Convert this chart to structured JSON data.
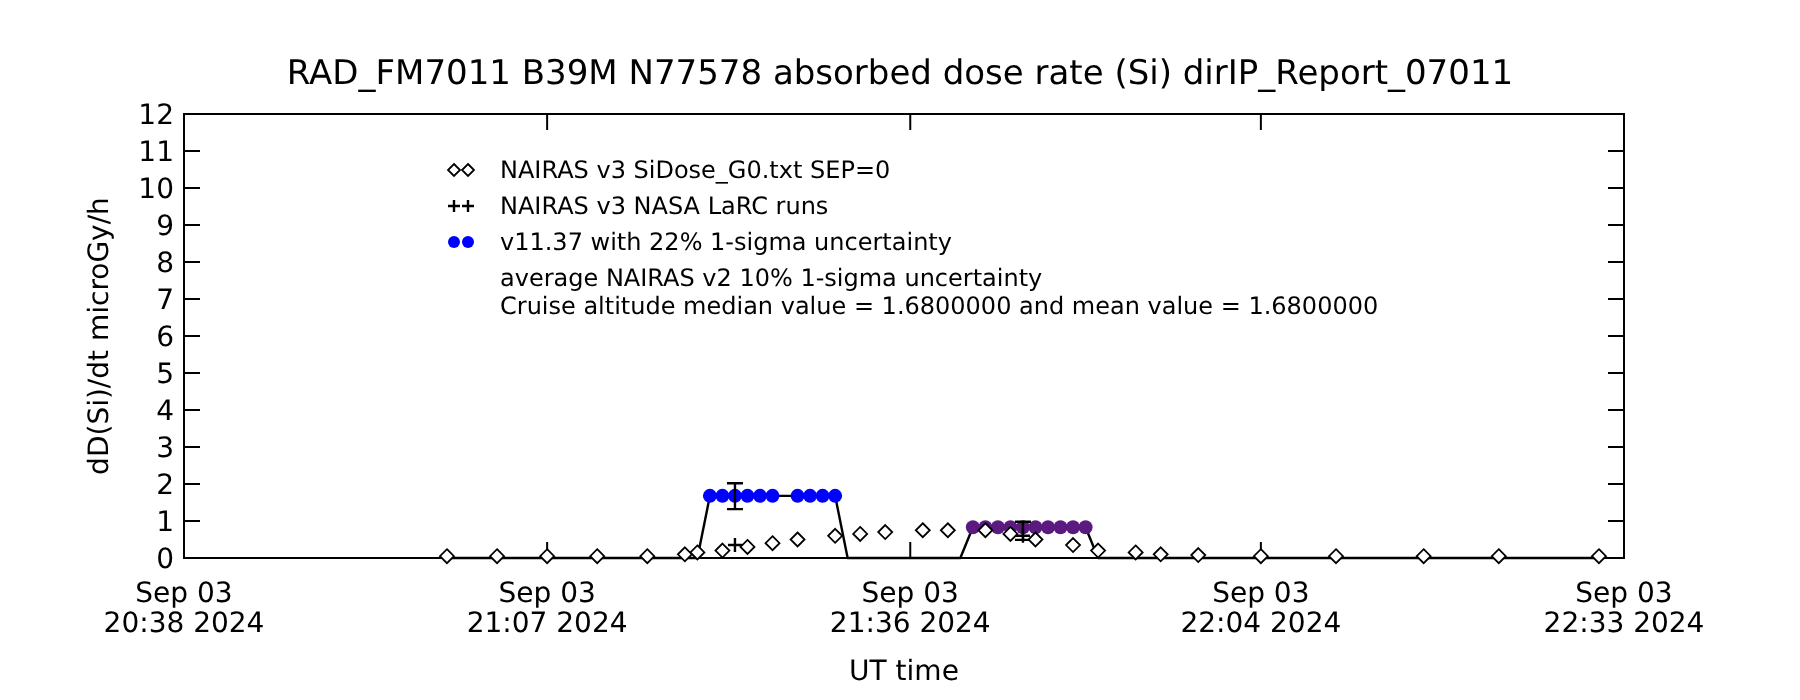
{
  "chart_data": {
    "type": "line",
    "title": "RAD_FM7011  B39M N77578 absorbed dose rate (Si) dirIP_Report_07011",
    "xlabel": "UT time",
    "ylabel": "dD(Si)/dt microGy/h",
    "xlim": [
      "2024-09-03T20:38",
      "2024-09-03T22:33"
    ],
    "xticks": [
      {
        "value": "2024-09-03T20:38",
        "label": "Sep 03\n20:38 2024"
      },
      {
        "value": "2024-09-03T21:07",
        "label": "Sep 03\n21:07 2024"
      },
      {
        "value": "2024-09-03T21:36",
        "label": "Sep 03\n21:36 2024"
      },
      {
        "value": "2024-09-03T22:04",
        "label": "Sep 03\n22:04 2024"
      },
      {
        "value": "2024-09-03T22:33",
        "label": "Sep 03\n22:33 2024"
      }
    ],
    "ylim": [
      0,
      12
    ],
    "yticks": [
      0,
      1,
      2,
      3,
      4,
      5,
      6,
      7,
      8,
      9,
      10,
      11,
      12
    ],
    "legend": "top",
    "annotations": [
      "average NAIRAS v2 10% 1-sigma uncertainty",
      "Cruise altitude median value = 1.6800000 and mean value = 1.6800000"
    ],
    "series": [
      {
        "name": "NAIRAS v3 SiDose_G0.txt SEP=0",
        "type": "scatter",
        "marker": "diamond",
        "color": "#000000",
        "x": [
          "2024-09-03T20:59",
          "2024-09-03T21:03",
          "2024-09-03T21:07",
          "2024-09-03T21:11",
          "2024-09-03T21:15",
          "2024-09-03T21:18",
          "2024-09-03T21:19",
          "2024-09-03T21:21",
          "2024-09-03T21:23",
          "2024-09-03T21:25",
          "2024-09-03T21:27",
          "2024-09-03T21:30",
          "2024-09-03T21:32",
          "2024-09-03T21:34",
          "2024-09-03T21:37",
          "2024-09-03T21:39",
          "2024-09-03T21:42",
          "2024-09-03T21:44",
          "2024-09-03T21:46",
          "2024-09-03T21:49",
          "2024-09-03T21:51",
          "2024-09-03T21:54",
          "2024-09-03T21:56",
          "2024-09-03T21:59",
          "2024-09-03T22:04",
          "2024-09-03T22:10",
          "2024-09-03T22:17",
          "2024-09-03T22:23",
          "2024-09-03T22:31"
        ],
        "values": [
          0.05,
          0.05,
          0.05,
          0.05,
          0.05,
          0.1,
          0.15,
          0.2,
          0.3,
          0.4,
          0.5,
          0.6,
          0.65,
          0.7,
          0.75,
          0.75,
          0.75,
          0.65,
          0.5,
          0.35,
          0.2,
          0.15,
          0.1,
          0.08,
          0.05,
          0.05,
          0.05,
          0.05,
          0.05
        ]
      },
      {
        "name": "NAIRAS v3 NASA LaRC runs",
        "type": "scatter",
        "marker": "cross",
        "color": "#000000",
        "x": [
          "2024-09-03T21:22",
          "2024-09-03T21:45"
        ],
        "values": [
          0.35,
          0.6
        ]
      },
      {
        "name": "v11.37 with 22% 1-sigma uncertainty",
        "type": "scatter",
        "marker": "circle",
        "color": "#0000ff",
        "x": [
          "2024-09-03T21:20",
          "2024-09-03T21:21",
          "2024-09-03T21:22",
          "2024-09-03T21:23",
          "2024-09-03T21:24",
          "2024-09-03T21:25",
          "2024-09-03T21:27",
          "2024-09-03T21:28",
          "2024-09-03T21:29",
          "2024-09-03T21:30"
        ],
        "values": [
          1.68,
          1.68,
          1.68,
          1.68,
          1.68,
          1.68,
          1.68,
          1.68,
          1.68,
          1.68
        ],
        "errors": [
          null,
          null,
          [
            1.32,
            2.02
          ],
          null,
          null,
          null,
          null,
          null,
          null,
          null
        ]
      },
      {
        "type": "scatter",
        "marker": "circle",
        "color": "#5a1a80",
        "x": [
          "2024-09-03T21:41",
          "2024-09-03T21:42",
          "2024-09-03T21:43",
          "2024-09-03T21:44",
          "2024-09-03T21:45",
          "2024-09-03T21:46",
          "2024-09-03T21:47",
          "2024-09-03T21:48",
          "2024-09-03T21:49",
          "2024-09-03T21:50"
        ],
        "values": [
          0.83,
          0.83,
          0.83,
          0.83,
          0.83,
          0.83,
          0.83,
          0.83,
          0.83,
          0.83
        ],
        "errors": [
          null,
          null,
          null,
          null,
          [
            0.49,
            0.98
          ],
          null,
          null,
          null,
          null,
          null
        ]
      },
      {
        "type": "line",
        "marker": "none",
        "color": "#000000",
        "x": [
          "2024-09-03T20:59",
          "2024-09-03T21:19",
          "2024-09-03T21:20",
          "2024-09-03T21:30",
          "2024-09-03T21:31",
          "2024-09-03T21:40",
          "2024-09-03T21:41",
          "2024-09-03T21:50",
          "2024-09-03T21:51",
          "2024-09-03T22:31"
        ],
        "values": [
          0,
          0,
          1.68,
          1.68,
          0,
          0,
          0.83,
          0.83,
          0,
          0
        ]
      }
    ]
  }
}
